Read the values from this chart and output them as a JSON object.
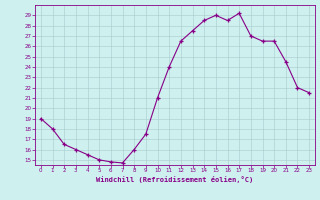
{
  "x": [
    0,
    1,
    2,
    3,
    4,
    5,
    6,
    7,
    8,
    9,
    10,
    11,
    12,
    13,
    14,
    15,
    16,
    17,
    18,
    19,
    20,
    21,
    22,
    23
  ],
  "y": [
    19.0,
    18.0,
    16.5,
    16.0,
    15.5,
    15.0,
    14.8,
    14.7,
    16.0,
    17.5,
    21.0,
    24.0,
    26.5,
    27.5,
    28.5,
    29.0,
    28.5,
    29.2,
    27.0,
    26.5,
    26.5,
    24.5,
    22.0,
    21.5
  ],
  "bg_color": "#cef0ee",
  "line_color": "#880088",
  "marker_color": "#880088",
  "grid_color": "#aacccc",
  "axis_label_color": "#880088",
  "tick_color": "#880088",
  "xlabel": "Windchill (Refroidissement éolien,°C)",
  "ylim": [
    14.5,
    30
  ],
  "xlim": [
    -0.5,
    23.5
  ],
  "yticks": [
    15,
    16,
    17,
    18,
    19,
    20,
    21,
    22,
    23,
    24,
    25,
    26,
    27,
    28,
    29
  ],
  "xticks": [
    0,
    1,
    2,
    3,
    4,
    5,
    6,
    7,
    8,
    9,
    10,
    11,
    12,
    13,
    14,
    15,
    16,
    17,
    18,
    19,
    20,
    21,
    22,
    23
  ]
}
